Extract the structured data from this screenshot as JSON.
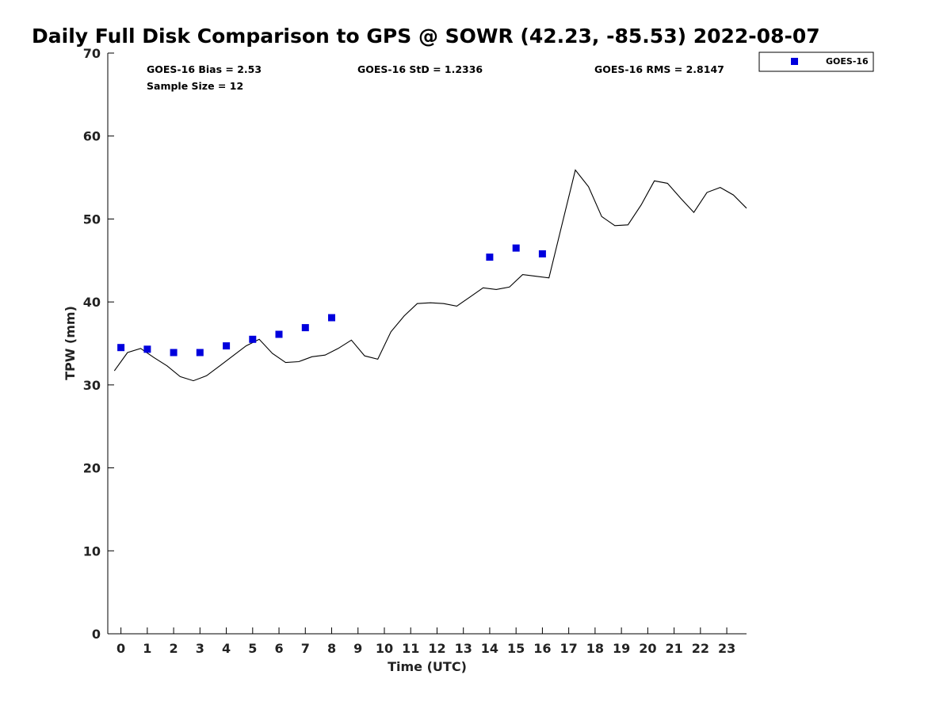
{
  "chart_data": {
    "type": "scatter",
    "title": "Daily Full Disk Comparison to GPS @ SOWR (42.23, -85.53) 2022-08-07",
    "xlabel": "Time (UTC)",
    "ylabel": "TPW (mm)",
    "xlim": [
      -0.5,
      23.75
    ],
    "ylim": [
      0,
      70
    ],
    "x_ticks": [
      "0",
      "1",
      "2",
      "3",
      "4",
      "5",
      "6",
      "7",
      "8",
      "9",
      "10",
      "11",
      "12",
      "13",
      "14",
      "15",
      "16",
      "17",
      "18",
      "19",
      "20",
      "21",
      "22",
      "23"
    ],
    "y_ticks": [
      "0",
      "10",
      "20",
      "30",
      "40",
      "50",
      "60",
      "70"
    ],
    "grid": false,
    "legend_placement": "outside-top-right",
    "stats": {
      "bias": "GOES-16 Bias = 2.53",
      "std": "GOES-16 StD = 1.2336",
      "rms": "GOES-16 RMS = 2.8147",
      "sample": "Sample Size = 12"
    },
    "series": [
      {
        "name": "GOES-16",
        "kind": "scatter",
        "marker": "square",
        "color": "#0000dd",
        "x": [
          0,
          1,
          2,
          3,
          4,
          5,
          6,
          7,
          8,
          14,
          15,
          16
        ],
        "y": [
          34.5,
          34.3,
          33.9,
          33.9,
          34.7,
          35.5,
          36.1,
          36.9,
          38.1,
          45.4,
          46.5,
          45.8
        ]
      },
      {
        "kind": "line",
        "color": "#000000",
        "x": [
          -0.25,
          0.25,
          0.75,
          1.25,
          1.75,
          2.25,
          2.75,
          3.25,
          3.75,
          4.25,
          4.75,
          5.25,
          5.75,
          6.25,
          6.75,
          7.25,
          7.75,
          8.25,
          8.75,
          9.25,
          9.75,
          10.25,
          10.75,
          11.25,
          11.75,
          12.25,
          12.75,
          13.25,
          13.75,
          14.25,
          14.75,
          15.25,
          15.75,
          16.25,
          16.75,
          17.25,
          17.75,
          18.25,
          18.75,
          19.25,
          19.75,
          20.25,
          20.75,
          21.25,
          21.75,
          22.25,
          22.75,
          23.25,
          23.75
        ],
        "y": [
          31.7,
          33.9,
          34.4,
          33.3,
          32.3,
          31.0,
          30.5,
          31.1,
          32.3,
          33.5,
          34.7,
          35.5,
          33.8,
          32.7,
          32.8,
          33.4,
          33.6,
          34.4,
          35.4,
          33.5,
          33.1,
          36.4,
          38.3,
          39.8,
          39.9,
          39.8,
          39.5,
          40.6,
          41.7,
          41.5,
          41.8,
          43.3,
          43.1,
          42.9,
          49.4,
          55.9,
          53.9,
          50.3,
          49.2,
          49.3,
          51.7,
          54.6,
          54.3,
          52.5,
          50.8,
          53.2,
          53.8,
          52.9,
          51.3
        ]
      }
    ]
  }
}
